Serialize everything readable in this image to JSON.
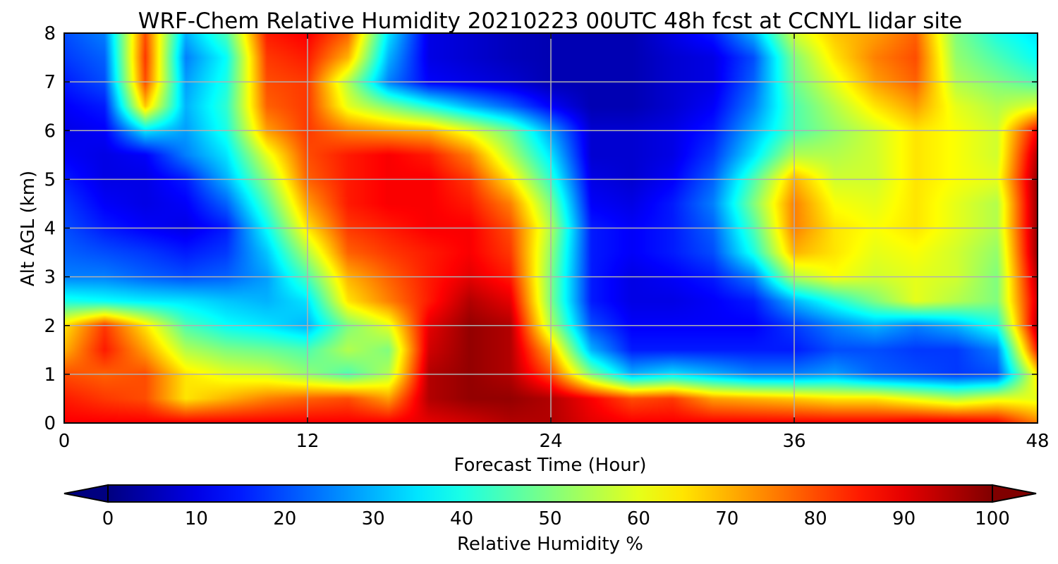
{
  "chart_data": {
    "type": "heatmap",
    "title": "WRF-Chem Relative Humidity 20210223 00UTC 48h fcst at CCNYL lidar site",
    "xlabel": "Forecast Time (Hour)",
    "ylabel": "Alt AGL (km)",
    "xlim": [
      0,
      48
    ],
    "ylim": [
      0,
      8
    ],
    "xticks": [
      0,
      12,
      24,
      36,
      48
    ],
    "yticks": [
      0,
      1,
      2,
      3,
      4,
      5,
      6,
      7,
      8
    ],
    "grid": true,
    "colormap": "jet",
    "colorbar": {
      "label": "Relative Humidity %",
      "range": [
        0,
        100
      ],
      "ticks": [
        0,
        10,
        20,
        30,
        40,
        50,
        60,
        70,
        80,
        90,
        100
      ],
      "extend": "both",
      "orientation": "horizontal"
    },
    "x": [
      0,
      2,
      4,
      6,
      8,
      10,
      12,
      14,
      16,
      18,
      20,
      22,
      24,
      26,
      28,
      30,
      32,
      34,
      36,
      38,
      40,
      42,
      44,
      46,
      48
    ],
    "y": [
      0,
      0.5,
      1,
      1.5,
      2,
      2.5,
      3,
      3.5,
      4,
      4.5,
      5,
      5.5,
      6,
      6.5,
      7,
      7.5,
      8
    ],
    "z": [
      [
        88,
        88,
        88,
        88,
        88,
        88,
        88,
        88,
        88,
        90,
        92,
        95,
        95,
        90,
        88,
        88,
        88,
        88,
        88,
        88,
        88,
        90,
        90,
        88,
        75
      ],
      [
        85,
        82,
        80,
        65,
        70,
        75,
        78,
        80,
        72,
        95,
        98,
        98,
        95,
        88,
        80,
        82,
        72,
        70,
        68,
        65,
        65,
        60,
        55,
        60,
        60
      ],
      [
        80,
        78,
        80,
        65,
        60,
        58,
        52,
        45,
        55,
        95,
        98,
        95,
        80,
        50,
        30,
        35,
        30,
        25,
        25,
        28,
        22,
        20,
        18,
        20,
        65
      ],
      [
        70,
        85,
        72,
        55,
        50,
        48,
        45,
        55,
        50,
        92,
        98,
        95,
        70,
        30,
        15,
        15,
        15,
        15,
        15,
        20,
        20,
        18,
        18,
        25,
        85
      ],
      [
        65,
        82,
        65,
        45,
        38,
        35,
        30,
        50,
        60,
        90,
        98,
        95,
        55,
        20,
        12,
        12,
        12,
        12,
        18,
        25,
        30,
        25,
        30,
        40,
        95
      ],
      [
        40,
        38,
        36,
        35,
        32,
        30,
        35,
        65,
        75,
        85,
        95,
        90,
        50,
        15,
        10,
        10,
        12,
        15,
        30,
        40,
        50,
        60,
        55,
        50,
        92
      ],
      [
        25,
        25,
        22,
        20,
        22,
        28,
        45,
        70,
        78,
        85,
        90,
        85,
        50,
        15,
        10,
        12,
        15,
        25,
        55,
        62,
        58,
        60,
        58,
        50,
        95
      ],
      [
        22,
        20,
        18,
        15,
        18,
        32,
        55,
        78,
        82,
        85,
        88,
        82,
        52,
        15,
        12,
        15,
        20,
        40,
        70,
        65,
        60,
        62,
        58,
        52,
        98
      ],
      [
        20,
        15,
        12,
        10,
        15,
        38,
        65,
        82,
        85,
        88,
        88,
        80,
        55,
        15,
        12,
        15,
        22,
        45,
        75,
        65,
        62,
        65,
        60,
        55,
        98
      ],
      [
        18,
        12,
        10,
        12,
        22,
        45,
        72,
        85,
        88,
        88,
        85,
        75,
        50,
        12,
        10,
        15,
        25,
        50,
        75,
        62,
        60,
        65,
        60,
        55,
        98
      ],
      [
        15,
        10,
        10,
        15,
        30,
        52,
        78,
        85,
        88,
        88,
        82,
        65,
        42,
        10,
        8,
        12,
        22,
        45,
        70,
        58,
        58,
        65,
        62,
        60,
        98
      ],
      [
        12,
        10,
        12,
        25,
        35,
        60,
        80,
        85,
        88,
        85,
        75,
        55,
        35,
        8,
        8,
        10,
        18,
        35,
        55,
        55,
        58,
        65,
        62,
        58,
        95
      ],
      [
        10,
        12,
        35,
        28,
        40,
        72,
        82,
        75,
        72,
        70,
        60,
        48,
        28,
        8,
        8,
        10,
        15,
        30,
        45,
        52,
        58,
        65,
        62,
        58,
        88
      ],
      [
        12,
        15,
        68,
        30,
        42,
        78,
        82,
        60,
        50,
        40,
        30,
        22,
        12,
        5,
        5,
        8,
        12,
        25,
        45,
        55,
        65,
        72,
        60,
        55,
        60
      ],
      [
        15,
        20,
        80,
        28,
        40,
        80,
        82,
        55,
        25,
        12,
        10,
        8,
        5,
        5,
        5,
        8,
        10,
        22,
        48,
        60,
        72,
        78,
        55,
        50,
        45
      ],
      [
        18,
        22,
        82,
        25,
        38,
        82,
        85,
        70,
        30,
        10,
        8,
        6,
        5,
        5,
        5,
        8,
        10,
        20,
        50,
        65,
        75,
        80,
        52,
        45,
        38
      ],
      [
        20,
        25,
        80,
        30,
        45,
        85,
        88,
        78,
        35,
        10,
        8,
        6,
        5,
        5,
        5,
        10,
        15,
        30,
        58,
        68,
        72,
        78,
        50,
        40,
        35
      ]
    ]
  }
}
